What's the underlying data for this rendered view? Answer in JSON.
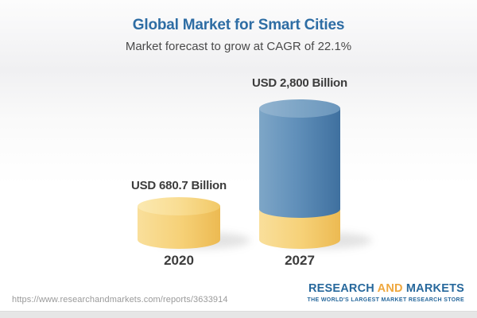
{
  "chart_data": {
    "type": "bar",
    "subtype": "3d-cylinder-stacked-infographic",
    "title": "Global Market for Smart Cities",
    "subtitle": "Market forecast to grow at CAGR of 22.1%",
    "categories": [
      "2020",
      "2027"
    ],
    "values": [
      680.7,
      2800
    ],
    "value_labels": [
      "USD 680.7 Billion",
      "USD 2,800 Billion"
    ],
    "unit": "USD Billion",
    "cagr_percent": 22.1,
    "legend": "none",
    "axes": "none",
    "colors": {
      "bar_2020": "#f6d178",
      "bar_2027_top_segment": "#6190ba",
      "bar_2027_base_segment": "#f6d178",
      "title_text": "#2e6da4",
      "label_text": "#3c3c3c"
    }
  },
  "footer": {
    "source_url": "https://www.researchandmarkets.com/reports/3633914",
    "logo": {
      "word1": "RESEARCH",
      "word2": "AND",
      "word3": "MARKETS",
      "tagline": "THE WORLD'S LARGEST MARKET RESEARCH STORE",
      "brand_blue": "#27689c",
      "brand_amber": "#efa73d"
    }
  }
}
